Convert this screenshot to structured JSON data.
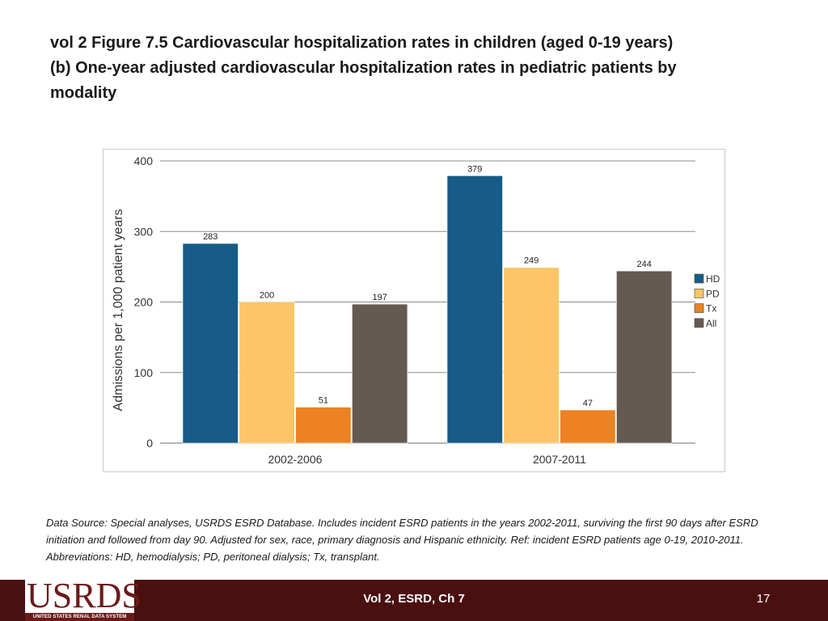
{
  "title": {
    "line1": "vol 2 Figure 7.5 Cardiovascular hospitalization rates in children (aged 0-19 years)",
    "line2": "(b) One-year adjusted cardiovascular hospitalization rates in pediatric patients by",
    "line3": "modality"
  },
  "chart_data": {
    "type": "bar",
    "title": "",
    "xlabel": "",
    "ylabel": "Admissions per 1,000 patient years",
    "ylim": [
      0,
      400
    ],
    "yticks": [
      0,
      100,
      200,
      300,
      400
    ],
    "grid": true,
    "legend_position": "right",
    "categories": [
      "2002-2006",
      "2007-2011"
    ],
    "series": [
      {
        "name": "HD",
        "color": "#175b86",
        "values": [
          283,
          379
        ]
      },
      {
        "name": "PD",
        "color": "#fcc567",
        "values": [
          200,
          249
        ]
      },
      {
        "name": "Tx",
        "color": "#ec8222",
        "values": [
          51,
          47
        ]
      },
      {
        "name": "All",
        "color": "#655a51",
        "values": [
          197,
          244
        ]
      }
    ]
  },
  "source_note": "Data Source: Special analyses, USRDS ESRD Database. Includes incident ESRD patients in the years 2002-2011, surviving the first 90 days after ESRD initiation and followed from day 90. Adjusted for sex, race, primary diagnosis and Hispanic ethnicity. Ref: incident ESRD patients age 0-19, 2010-2011. Abbreviations: HD, hemodialysis; PD, peritoneal dialysis; Tx, transplant.",
  "footer": {
    "logo_text": "USRDS",
    "logo_subtext": "UNITED STATES RENAL DATA SYSTEM",
    "center_label": "Vol 2, ESRD, Ch 7",
    "page_number": "17",
    "background_color": "#4a0f0f"
  }
}
